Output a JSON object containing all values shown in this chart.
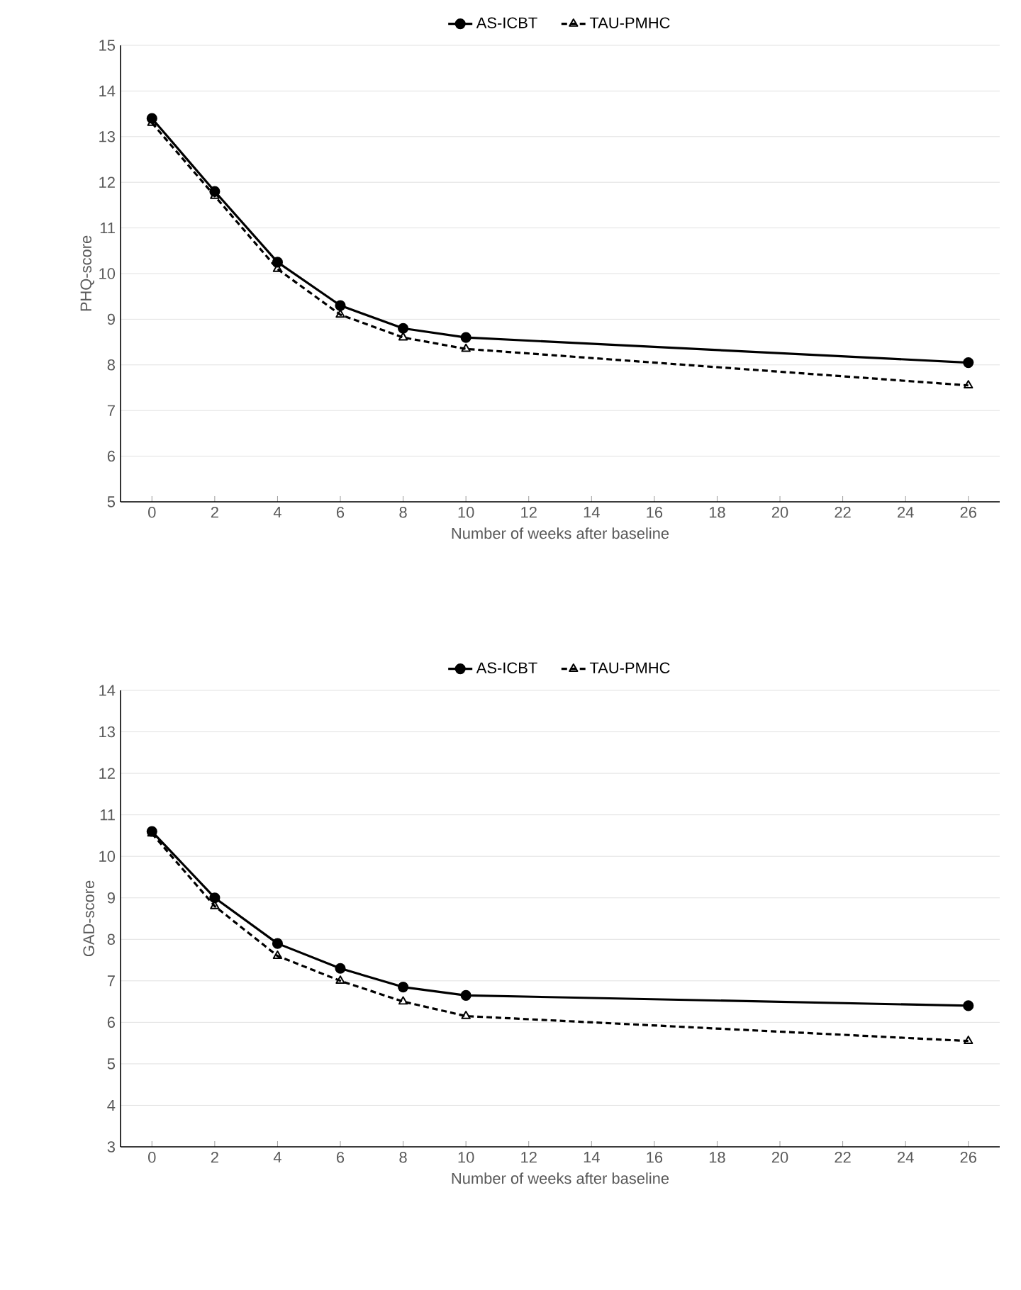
{
  "chart_data": [
    {
      "type": "line",
      "xlabel": "Number of weeks after baseline",
      "ylabel": "PHQ-score",
      "categories": [
        "0",
        "2",
        "4",
        "6",
        "8",
        "10",
        "12",
        "14",
        "16",
        "18",
        "20",
        "22",
        "24",
        "26"
      ],
      "ylim": [
        5,
        15
      ],
      "yticks": [
        5,
        6,
        7,
        8,
        9,
        10,
        11,
        12,
        13,
        14,
        15
      ],
      "grid": "y",
      "legend": "top",
      "series": [
        {
          "name": "AS-ICBT",
          "color": "#000000",
          "marker": "circle",
          "line_style": "solid",
          "values": [
            13.4,
            11.8,
            10.25,
            9.3,
            8.8,
            8.6,
            null,
            null,
            null,
            null,
            null,
            null,
            null,
            8.05
          ]
        },
        {
          "name": "TAU-PMHC",
          "color": "#000000",
          "marker": "triangle",
          "line_style": "dashed",
          "values": [
            13.3,
            11.7,
            10.1,
            9.1,
            8.6,
            8.35,
            null,
            null,
            null,
            null,
            null,
            null,
            null,
            7.55
          ]
        }
      ]
    },
    {
      "type": "line",
      "xlabel": "Number of weeks after baseline",
      "ylabel": "GAD-score",
      "categories": [
        "0",
        "2",
        "4",
        "6",
        "8",
        "10",
        "12",
        "14",
        "16",
        "18",
        "20",
        "22",
        "24",
        "26"
      ],
      "ylim": [
        3,
        14
      ],
      "yticks": [
        3,
        4,
        5,
        6,
        7,
        8,
        9,
        10,
        11,
        12,
        13,
        14
      ],
      "grid": "y",
      "legend": "top",
      "series": [
        {
          "name": "AS-ICBT",
          "color": "#000000",
          "marker": "circle",
          "line_style": "solid",
          "values": [
            10.6,
            9.0,
            7.9,
            7.3,
            6.85,
            6.65,
            null,
            null,
            null,
            null,
            null,
            null,
            null,
            6.4
          ]
        },
        {
          "name": "TAU-PMHC",
          "color": "#000000",
          "marker": "triangle",
          "line_style": "dashed",
          "values": [
            10.55,
            8.8,
            7.6,
            7.0,
            6.5,
            6.15,
            null,
            null,
            null,
            null,
            null,
            null,
            null,
            5.55
          ]
        }
      ]
    }
  ]
}
